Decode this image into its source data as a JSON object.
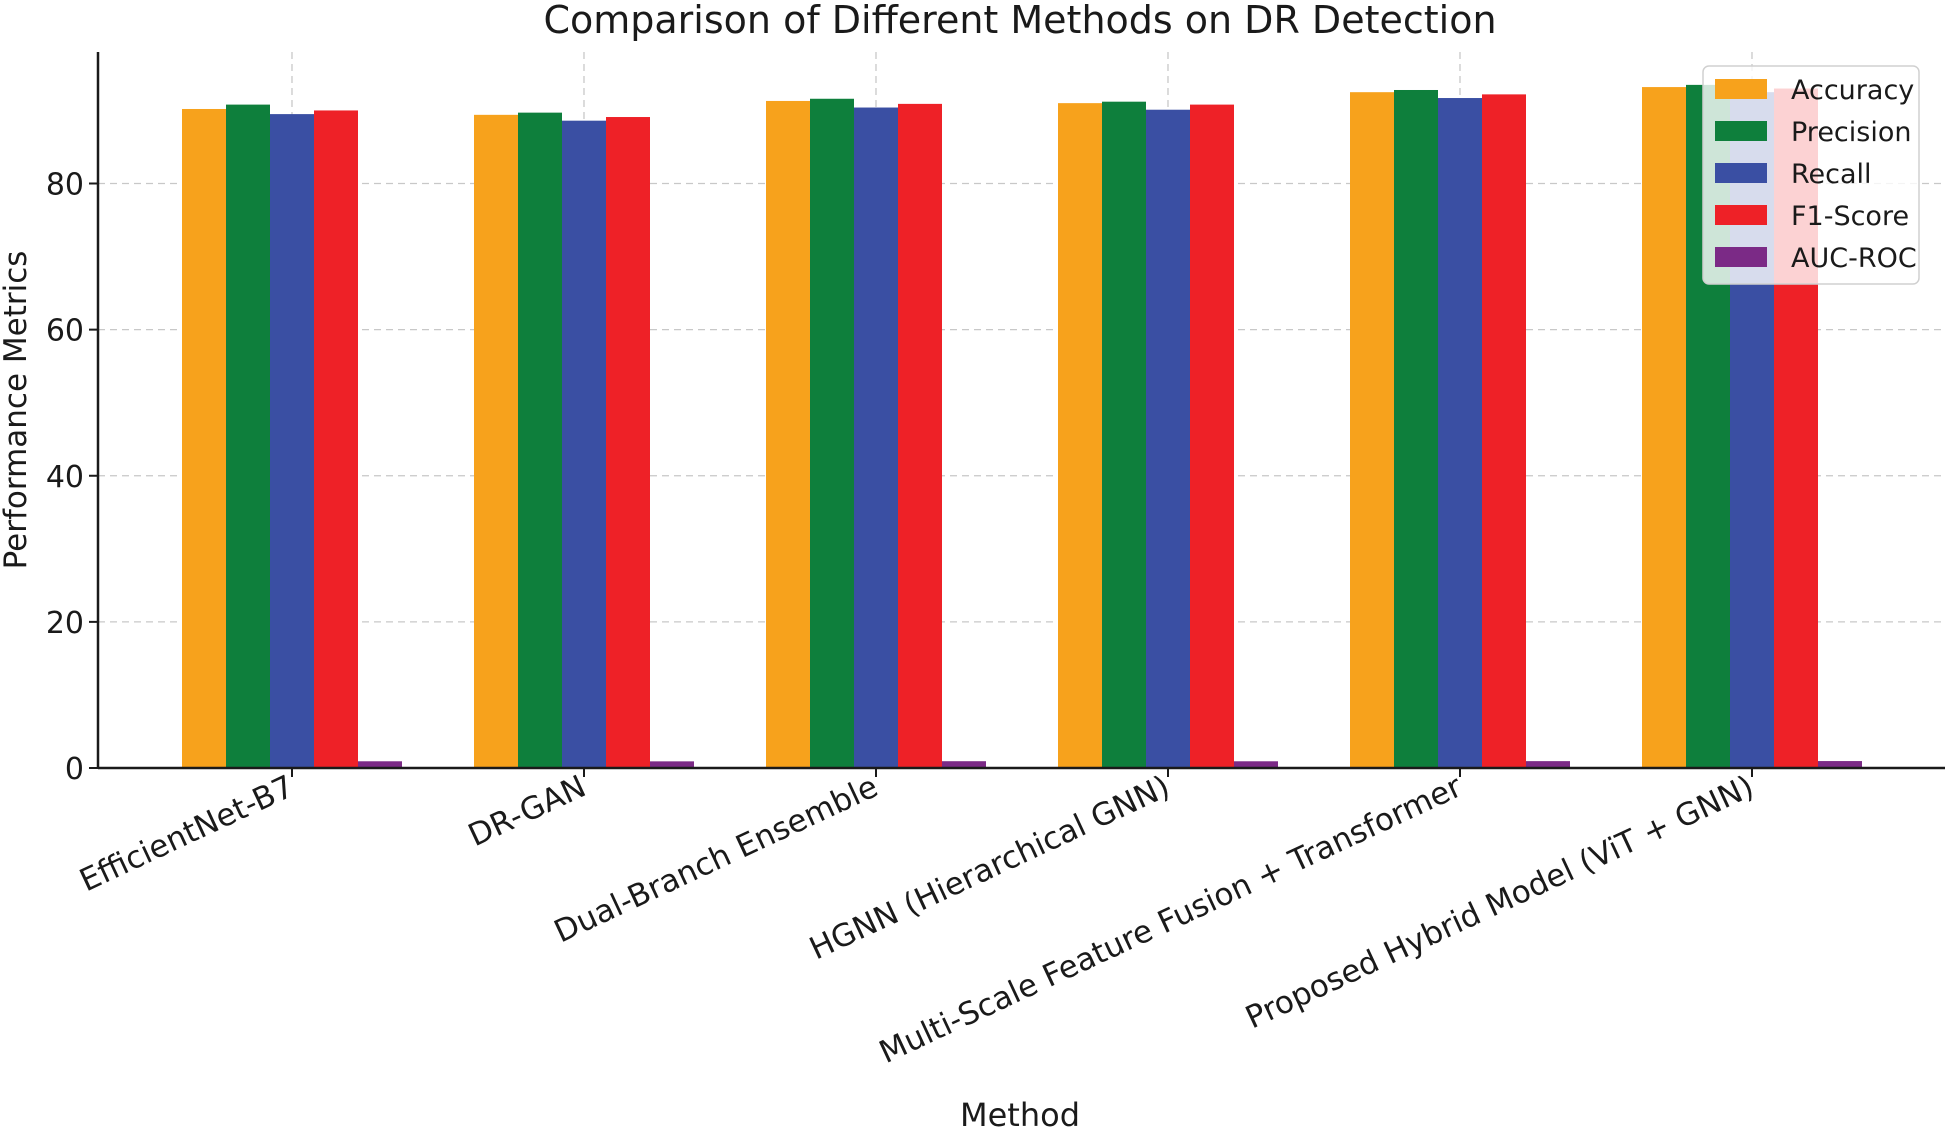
{
  "chart_data": {
    "type": "bar",
    "title": "Comparison of Different Methods on DR Detection",
    "xlabel": "Method",
    "ylabel": "Performance Metrics",
    "ylim": [
      0,
      98
    ],
    "yticks": [
      0,
      20,
      40,
      60,
      80
    ],
    "grid": true,
    "legend_position": "top-right",
    "categories": [
      "EfficientNet-B7",
      "DR-GAN",
      "Dual-Branch Ensemble",
      "HGNN (Hierarchical GNN)",
      "Multi-Scale Feature Fusion + Transformer",
      "Proposed Hybrid Model (ViT + GNN)"
    ],
    "series": [
      {
        "name": "Accuracy",
        "color": "#f7a21c",
        "values": [
          90.2,
          89.4,
          91.3,
          91.0,
          92.5,
          93.2
        ]
      },
      {
        "name": "Precision",
        "color": "#0e7f3c",
        "values": [
          90.8,
          89.7,
          91.6,
          91.2,
          92.8,
          93.5
        ]
      },
      {
        "name": "Recall",
        "color": "#3a4fa3",
        "values": [
          89.5,
          88.6,
          90.4,
          90.1,
          91.7,
          92.5
        ]
      },
      {
        "name": "F1-Score",
        "color": "#ee2127",
        "values": [
          90.0,
          89.1,
          90.9,
          90.8,
          92.2,
          93.0
        ]
      },
      {
        "name": "AUC-ROC",
        "color": "#7b2a86",
        "values": [
          0.92,
          0.91,
          0.93,
          0.92,
          0.94,
          0.95
        ]
      }
    ]
  }
}
